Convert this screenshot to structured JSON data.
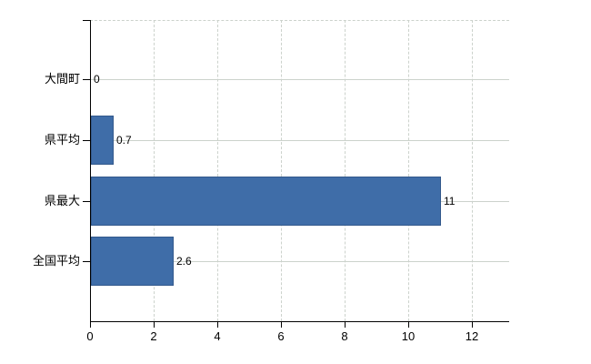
{
  "chart_data": {
    "type": "bar",
    "orientation": "horizontal",
    "title": "",
    "xlabel": "",
    "ylabel": "",
    "categories": [
      "大間町",
      "県平均",
      "県最大",
      "全国平均"
    ],
    "values": [
      0,
      0.7,
      11,
      2.6
    ],
    "value_labels": [
      "0",
      "0.7",
      "11",
      "2.6"
    ],
    "xticks": [
      0,
      2,
      4,
      6,
      8,
      10,
      12
    ],
    "xlim": [
      0,
      13.2
    ],
    "legend": "none",
    "grid": "dashed vertical gridlines at x ticks, solid horizontal gridlines at category centers, dashed top plot border",
    "colors": {
      "bar_fill": "#3f6da8",
      "bar_border": "#33598c",
      "grid_line": "#ccd2cc",
      "axis_line": "#000000",
      "label_text": "#000000",
      "background": "#ffffff"
    }
  }
}
